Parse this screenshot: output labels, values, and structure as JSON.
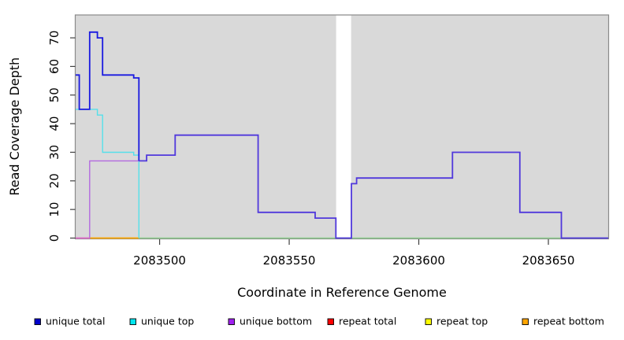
{
  "chart_data": {
    "type": "line",
    "subtype": "step",
    "title": "",
    "xlabel": "Coordinate in Reference Genome",
    "ylabel": "Read Coverage Depth",
    "xlim": [
      2083467.6,
      2083673.1
    ],
    "ylim": [
      0,
      78
    ],
    "xticks": [
      {
        "value": 2083500,
        "label": "2083500"
      },
      {
        "value": 2083550,
        "label": "2083550"
      },
      {
        "value": 2083600,
        "label": "2083600"
      },
      {
        "value": 2083650,
        "label": "2083650"
      }
    ],
    "yticks": [
      {
        "value": 0,
        "label": "0"
      },
      {
        "value": 10,
        "label": "10"
      },
      {
        "value": 20,
        "label": "20"
      },
      {
        "value": 30,
        "label": "30"
      },
      {
        "value": 40,
        "label": "40"
      },
      {
        "value": 50,
        "label": "50"
      },
      {
        "value": 60,
        "label": "60"
      },
      {
        "value": 70,
        "label": "70"
      }
    ],
    "grid": false,
    "plot_bg": "#d9d9d9",
    "border_color": "#8a8a8a",
    "tick_color": "#404040",
    "no_data_gap": {
      "from": 2083568.1,
      "to": 2083573.9,
      "color": "#ffffff"
    },
    "legend_position": "bottom",
    "draw_order": [
      "repeat top",
      "repeat bottom",
      "unique top",
      "unique bottom",
      "repeat total",
      "unique total"
    ],
    "series": [
      {
        "name": "unique total",
        "legend_color": "#0000CC",
        "strokes": [
          {
            "color": "#1A1AE0",
            "width": 1.8,
            "points": [
              [
                2083467.6,
                57
              ],
              [
                2083469,
                45
              ],
              [
                2083473,
                72
              ],
              [
                2083476,
                70
              ],
              [
                2083478,
                57
              ],
              [
                2083490,
                56
              ],
              [
                2083492,
                27
              ]
            ]
          },
          {
            "color": "#5038DC",
            "width": 1.8,
            "points": [
              [
                2083492,
                27
              ],
              [
                2083495,
                29
              ],
              [
                2083506,
                36
              ],
              [
                2083538,
                9
              ],
              [
                2083560,
                7
              ],
              [
                2083568,
                0
              ],
              [
                2083574,
                19
              ],
              [
                2083576,
                21
              ],
              [
                2083613,
                30
              ],
              [
                2083639,
                9
              ],
              [
                2083655,
                0
              ],
              [
                2083673.1,
                0
              ]
            ]
          }
        ]
      },
      {
        "name": "unique top",
        "legend_color": "#00E5EE",
        "strokes": [
          {
            "color": "#55E0EA",
            "width": 1.4,
            "points": [
              [
                2083467.6,
                45
              ],
              [
                2083476,
                43
              ],
              [
                2083478,
                30
              ],
              [
                2083490,
                29
              ],
              [
                2083492,
                0
              ]
            ]
          }
        ]
      },
      {
        "name": "unique bottom",
        "legend_color": "#A020F0",
        "strokes": [
          {
            "color": "#B36AE0",
            "width": 1.4,
            "points": [
              [
                2083467.6,
                0
              ],
              [
                2083473,
                27
              ],
              [
                2083492,
                27
              ]
            ]
          }
        ]
      },
      {
        "name": "repeat total",
        "legend_color": "#FF0000",
        "strokes": [
          {
            "color": "#E868C8",
            "width": 1.6,
            "points": [
              [
                2083467.6,
                0
              ],
              [
                2083473,
                0
              ]
            ]
          }
        ]
      },
      {
        "name": "repeat top",
        "legend_color": "#FFFF00",
        "strokes": [
          {
            "color": "#8CCC8C",
            "width": 1.4,
            "points": [
              [
                2083467.6,
                0
              ],
              [
                2083673.1,
                0
              ]
            ]
          }
        ]
      },
      {
        "name": "repeat bottom",
        "legend_color": "#FFA500",
        "strokes": [
          {
            "color": "#FFA500",
            "width": 1.8,
            "points": [
              [
                2083473,
                0
              ],
              [
                2083492,
                0
              ]
            ]
          }
        ]
      }
    ]
  }
}
